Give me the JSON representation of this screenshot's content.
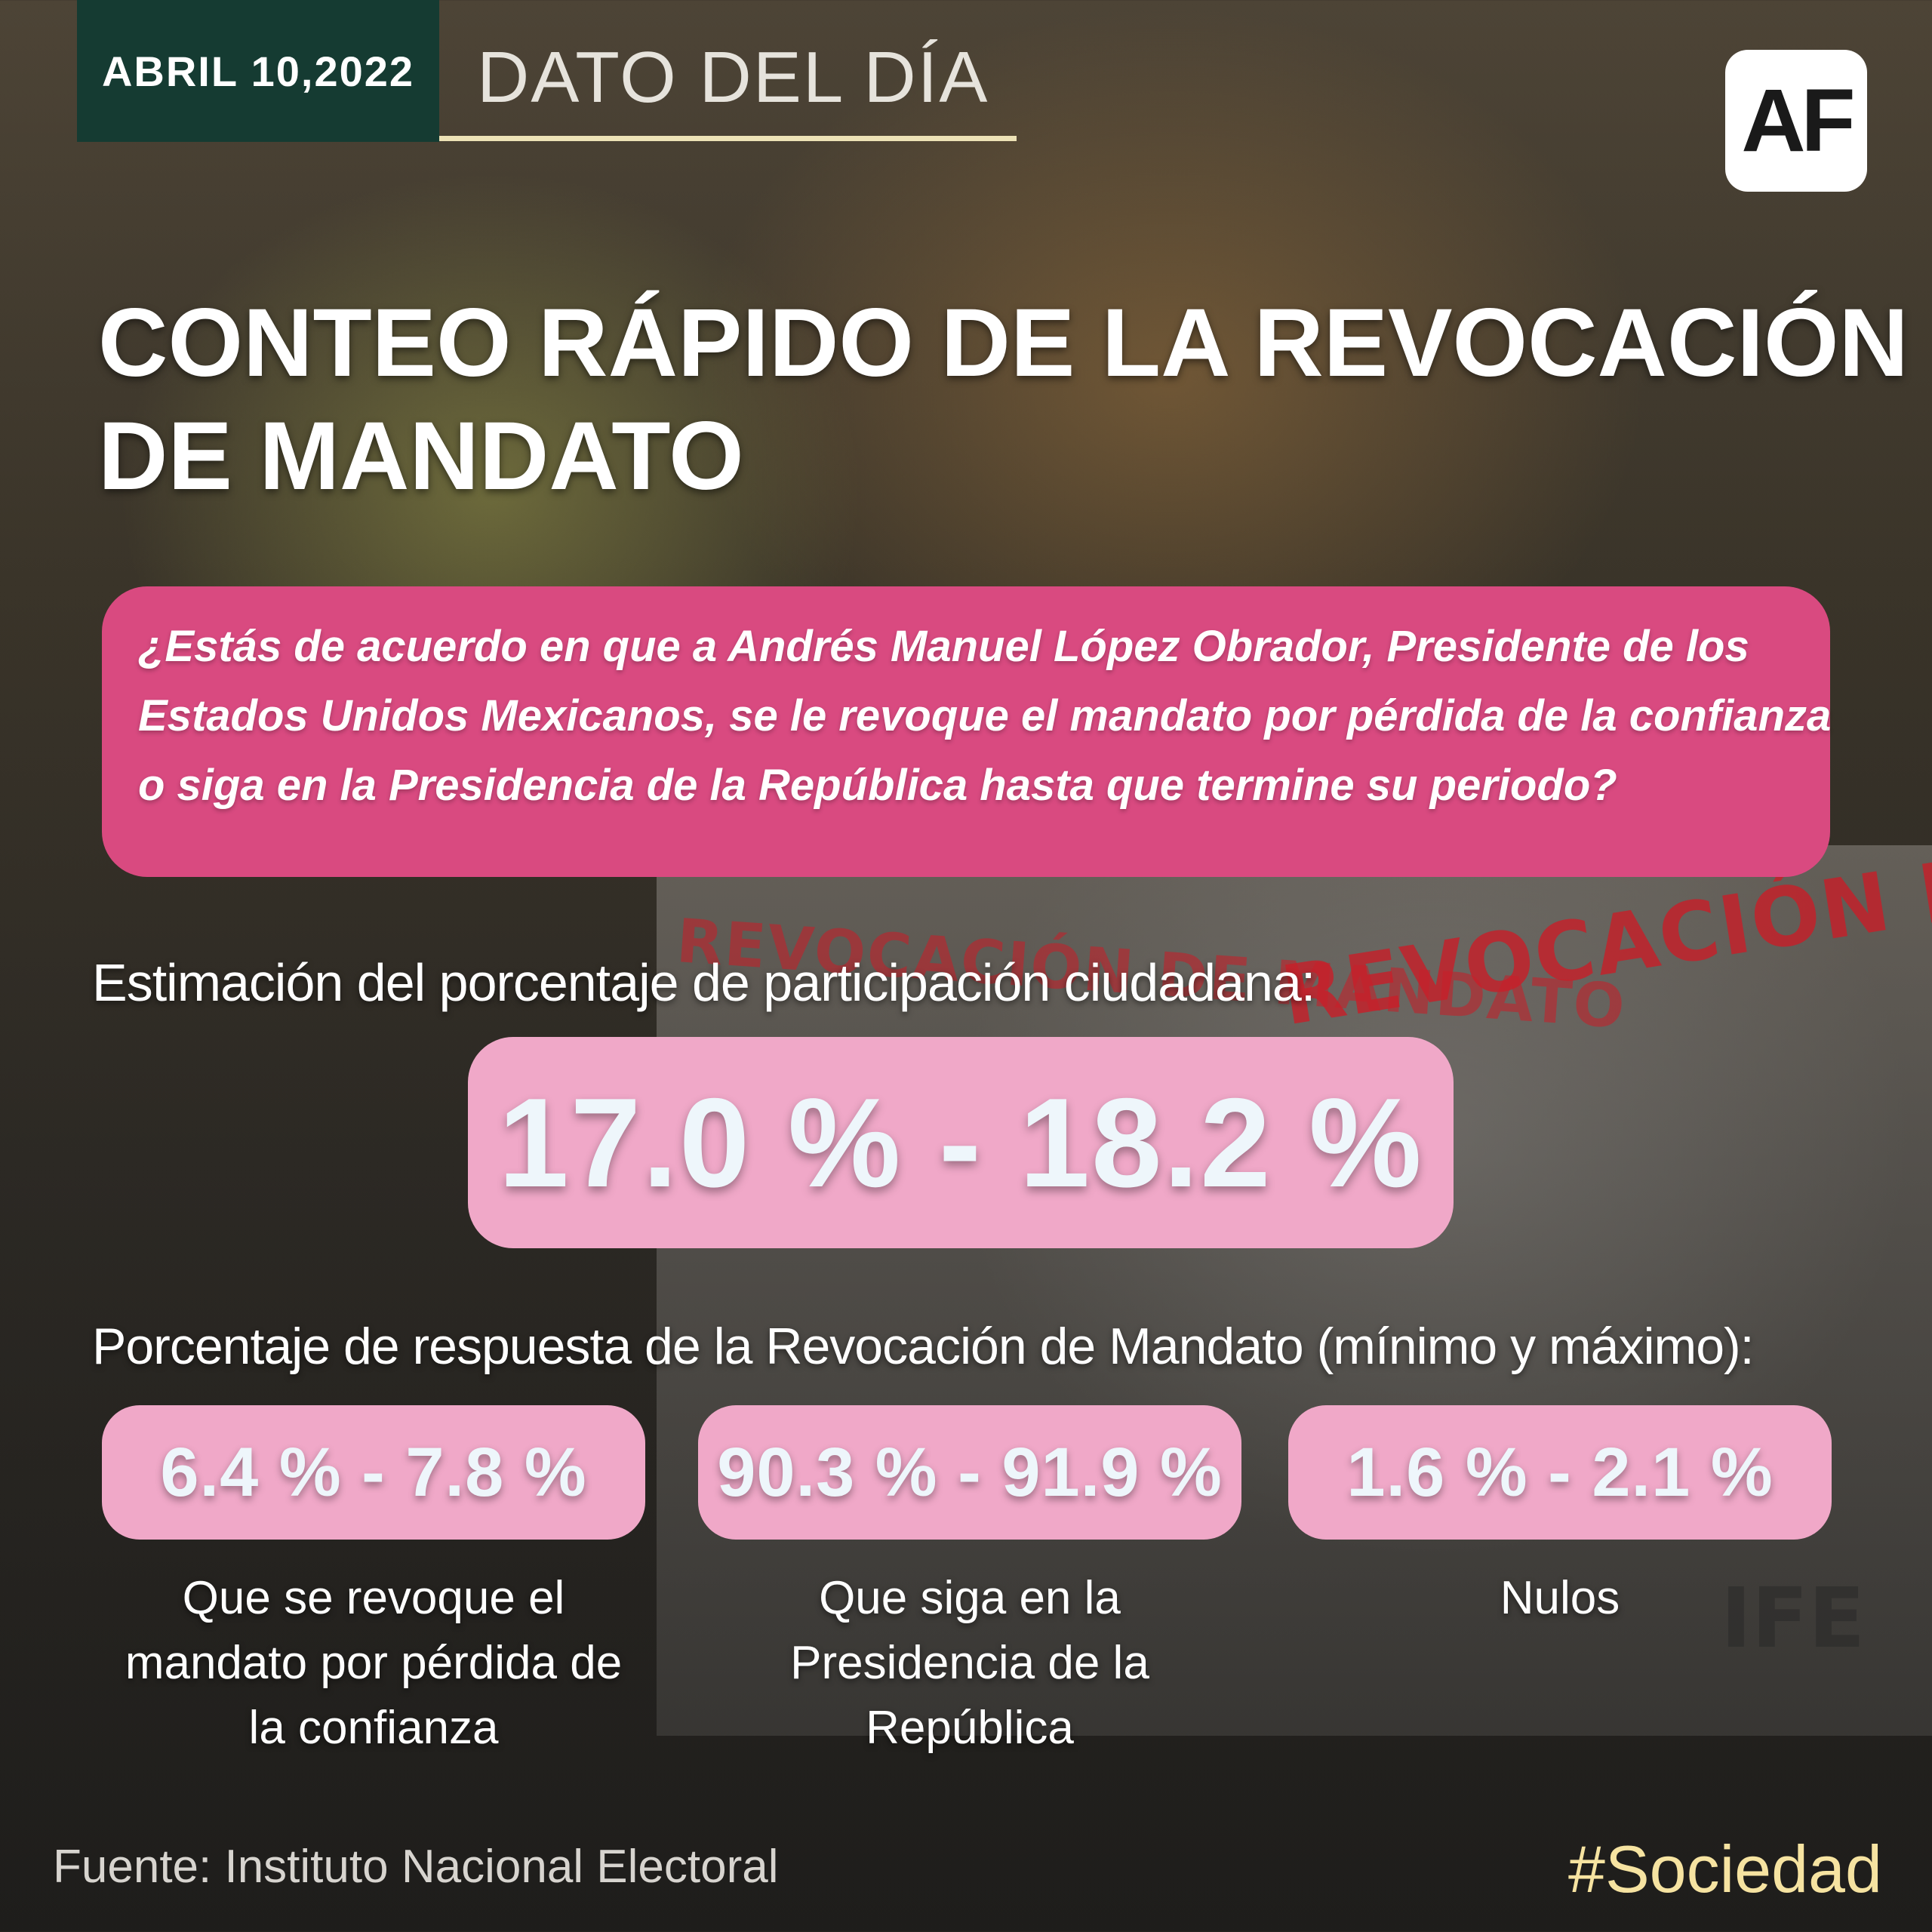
{
  "header": {
    "date": "ABRIL 10,2022",
    "section_title": "DATO DEL DÍA",
    "logo_text": "AF"
  },
  "title": {
    "line1": "CONTEO RÁPIDO DE LA REVOCACIÓN",
    "line2": "DE MANDATO"
  },
  "question": {
    "line1": "¿Estás de acuerdo en que a Andrés Manuel López Obrador, Presidente de los",
    "line2": "Estados Unidos Mexicanos, se le revoque el mandato por pérdida de la confianza",
    "line3": "o siga en la Presidencia de la República hasta que termine su periodo?"
  },
  "participation": {
    "label": "Estimación del porcentaje de participación ciudadana:",
    "value": "17.0 % - 18.2 %"
  },
  "responses": {
    "label": "Porcentaje de respuesta de la Revocación de Mandato (mínimo y máximo):",
    "items": [
      {
        "value": "6.4 % - 7.8 %",
        "caption": [
          "Que se revoque el",
          "mandato por pérdida de",
          "la confianza"
        ]
      },
      {
        "value": "90.3 % - 91.9 %",
        "caption": [
          "Que siga en la",
          "Presidencia de la",
          "República"
        ]
      },
      {
        "value": "1.6 % - 2.1 %",
        "caption": [
          "Nulos"
        ]
      }
    ]
  },
  "background": {
    "ballot_text_left": "REVOCACIÓN DE MANDATO",
    "ballot_text_right": "REVOCACIÓN DE MANDATO",
    "ife_mark": "IFE"
  },
  "footer": {
    "source": "Fuente: Instituto Nacional Electoral",
    "hashtag": "#Sociedad"
  },
  "colors": {
    "date_box": "#153b32",
    "question_box": "#d94a80",
    "value_pill": "#f0a8c8",
    "value_text": "#eef6fb",
    "hashtag": "#f6e3a1"
  }
}
